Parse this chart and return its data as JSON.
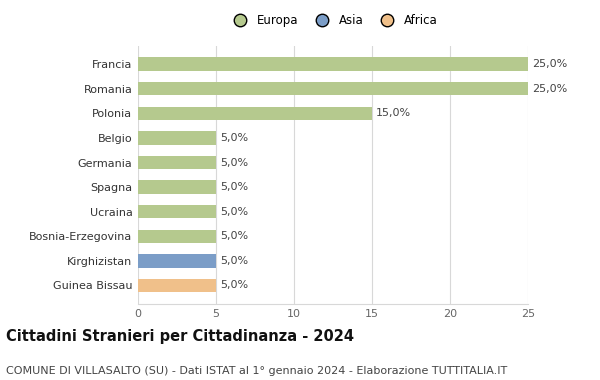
{
  "categories": [
    "Guinea Bissau",
    "Kirghizistan",
    "Bosnia-Erzegovina",
    "Ucraina",
    "Spagna",
    "Germania",
    "Belgio",
    "Polonia",
    "Romania",
    "Francia"
  ],
  "values": [
    5.0,
    5.0,
    5.0,
    5.0,
    5.0,
    5.0,
    5.0,
    15.0,
    25.0,
    25.0
  ],
  "bar_colors": [
    "#f0c08a",
    "#7b9dc7",
    "#b5c98e",
    "#b5c98e",
    "#b5c98e",
    "#b5c98e",
    "#b5c98e",
    "#b5c98e",
    "#b5c98e",
    "#b5c98e"
  ],
  "labels": [
    "5,0%",
    "5,0%",
    "5,0%",
    "5,0%",
    "5,0%",
    "5,0%",
    "5,0%",
    "15,0%",
    "25,0%",
    "25,0%"
  ],
  "xlim": [
    0,
    25
  ],
  "xticks": [
    0,
    5,
    10,
    15,
    20,
    25
  ],
  "title": "Cittadini Stranieri per Cittadinanza - 2024",
  "subtitle": "COMUNE DI VILLASALTO (SU) - Dati ISTAT al 1° gennaio 2024 - Elaborazione TUTTITALIA.IT",
  "legend": [
    {
      "label": "Europa",
      "color": "#b5c98e"
    },
    {
      "label": "Asia",
      "color": "#7b9dc7"
    },
    {
      "label": "Africa",
      "color": "#f0c08a"
    }
  ],
  "bg_color": "#ffffff",
  "grid_color": "#d8d8d8",
  "bar_height": 0.55,
  "label_fontsize": 8,
  "title_fontsize": 10.5,
  "subtitle_fontsize": 8,
  "tick_fontsize": 8,
  "legend_fontsize": 8.5
}
